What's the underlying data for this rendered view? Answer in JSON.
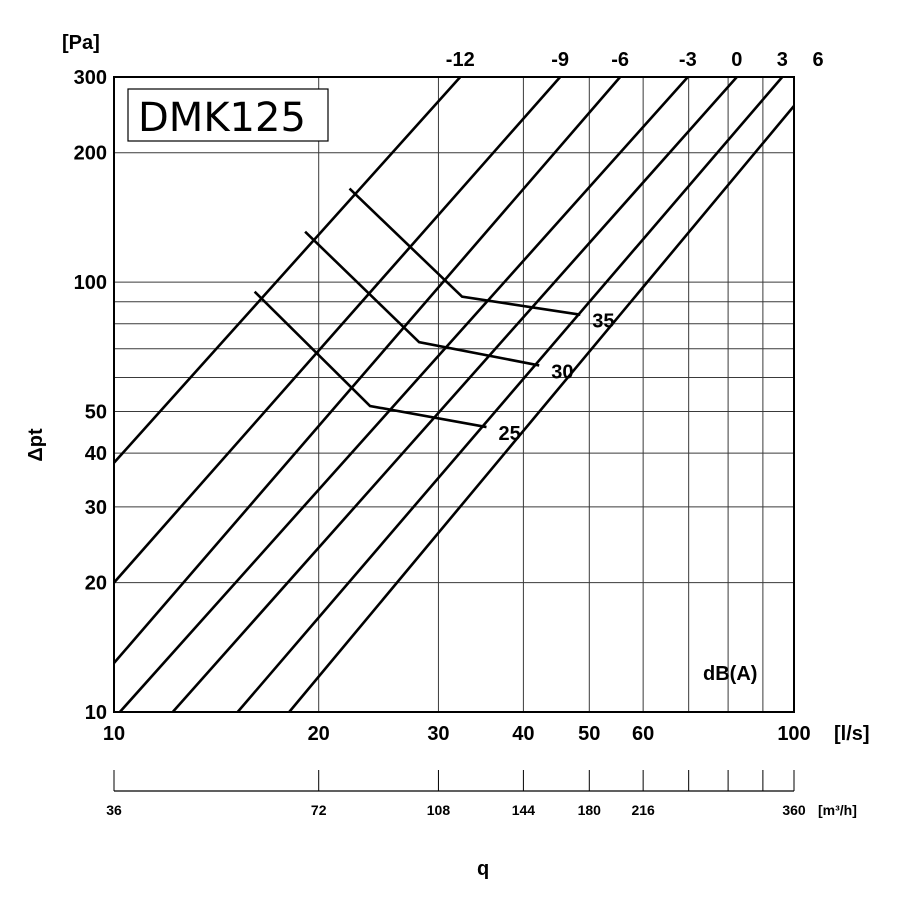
{
  "chart_data": {
    "type": "line",
    "title": "DMK125",
    "x_scale": "log",
    "y_scale": "log",
    "xlim": [
      10,
      100
    ],
    "ylim": [
      10,
      300
    ],
    "xlabel": "q",
    "x_unit": "[l/s]",
    "x_unit_secondary": "[m³/h]",
    "ylabel": "Δpt",
    "y_unit": "[Pa]",
    "db_label": "dB(A)",
    "x_ticks": [
      {
        "value": 10,
        "label": "10"
      },
      {
        "value": 20,
        "label": "20"
      },
      {
        "value": 30,
        "label": "30"
      },
      {
        "value": 40,
        "label": "40"
      },
      {
        "value": 50,
        "label": "50"
      },
      {
        "value": 60,
        "label": "60"
      },
      {
        "value": 100,
        "label": "100"
      }
    ],
    "x_minor_grid": [
      70,
      80,
      90
    ],
    "secondary_x_ticks": [
      {
        "value": 10,
        "label": "36"
      },
      {
        "value": 20,
        "label": "72"
      },
      {
        "value": 30,
        "label": "108"
      },
      {
        "value": 40,
        "label": "144"
      },
      {
        "value": 50,
        "label": "180"
      },
      {
        "value": 60,
        "label": "216"
      },
      {
        "value": 70,
        "label": ""
      },
      {
        "value": 80,
        "label": ""
      },
      {
        "value": 90,
        "label": ""
      },
      {
        "value": 100,
        "label": "360"
      }
    ],
    "y_ticks": [
      {
        "value": 10,
        "label": "10"
      },
      {
        "value": 20,
        "label": "20"
      },
      {
        "value": 30,
        "label": "30"
      },
      {
        "value": 40,
        "label": "40"
      },
      {
        "value": 50,
        "label": "50"
      },
      {
        "value": 100,
        "label": "100"
      },
      {
        "value": 200,
        "label": "200"
      },
      {
        "value": 300,
        "label": "300"
      }
    ],
    "y_minor_grid": [
      60,
      70,
      80,
      90
    ],
    "series": [
      {
        "name": "-12",
        "points": [
          [
            10,
            38
          ],
          [
            32.3,
            300
          ]
        ]
      },
      {
        "name": "-9",
        "points": [
          [
            10,
            20
          ],
          [
            45.3,
            300
          ]
        ]
      },
      {
        "name": "-6",
        "points": [
          [
            10,
            13
          ],
          [
            55.5,
            300
          ]
        ]
      },
      {
        "name": "-3",
        "points": [
          [
            10.2,
            10
          ],
          [
            69.8,
            300
          ]
        ]
      },
      {
        "name": "0",
        "points": [
          [
            12.2,
            10
          ],
          [
            82.4,
            300
          ]
        ]
      },
      {
        "name": "3",
        "points": [
          [
            15.2,
            10
          ],
          [
            96.1,
            300
          ]
        ]
      },
      {
        "name": "6",
        "points": [
          [
            18.1,
            10
          ],
          [
            108.5,
            300
          ]
        ]
      }
    ],
    "sound_level_curves": [
      {
        "label": "35",
        "points": [
          [
            22.2,
            165
          ],
          [
            32.5,
            92.5
          ],
          [
            48.5,
            84
          ]
        ]
      },
      {
        "label": "30",
        "points": [
          [
            19.1,
            131
          ],
          [
            28.1,
            72.5
          ],
          [
            42.2,
            64
          ]
        ]
      },
      {
        "label": "25",
        "points": [
          [
            16.1,
            95
          ],
          [
            23.8,
            51.5
          ],
          [
            35.3,
            46
          ]
        ]
      }
    ],
    "grid": true,
    "legend": "none"
  }
}
